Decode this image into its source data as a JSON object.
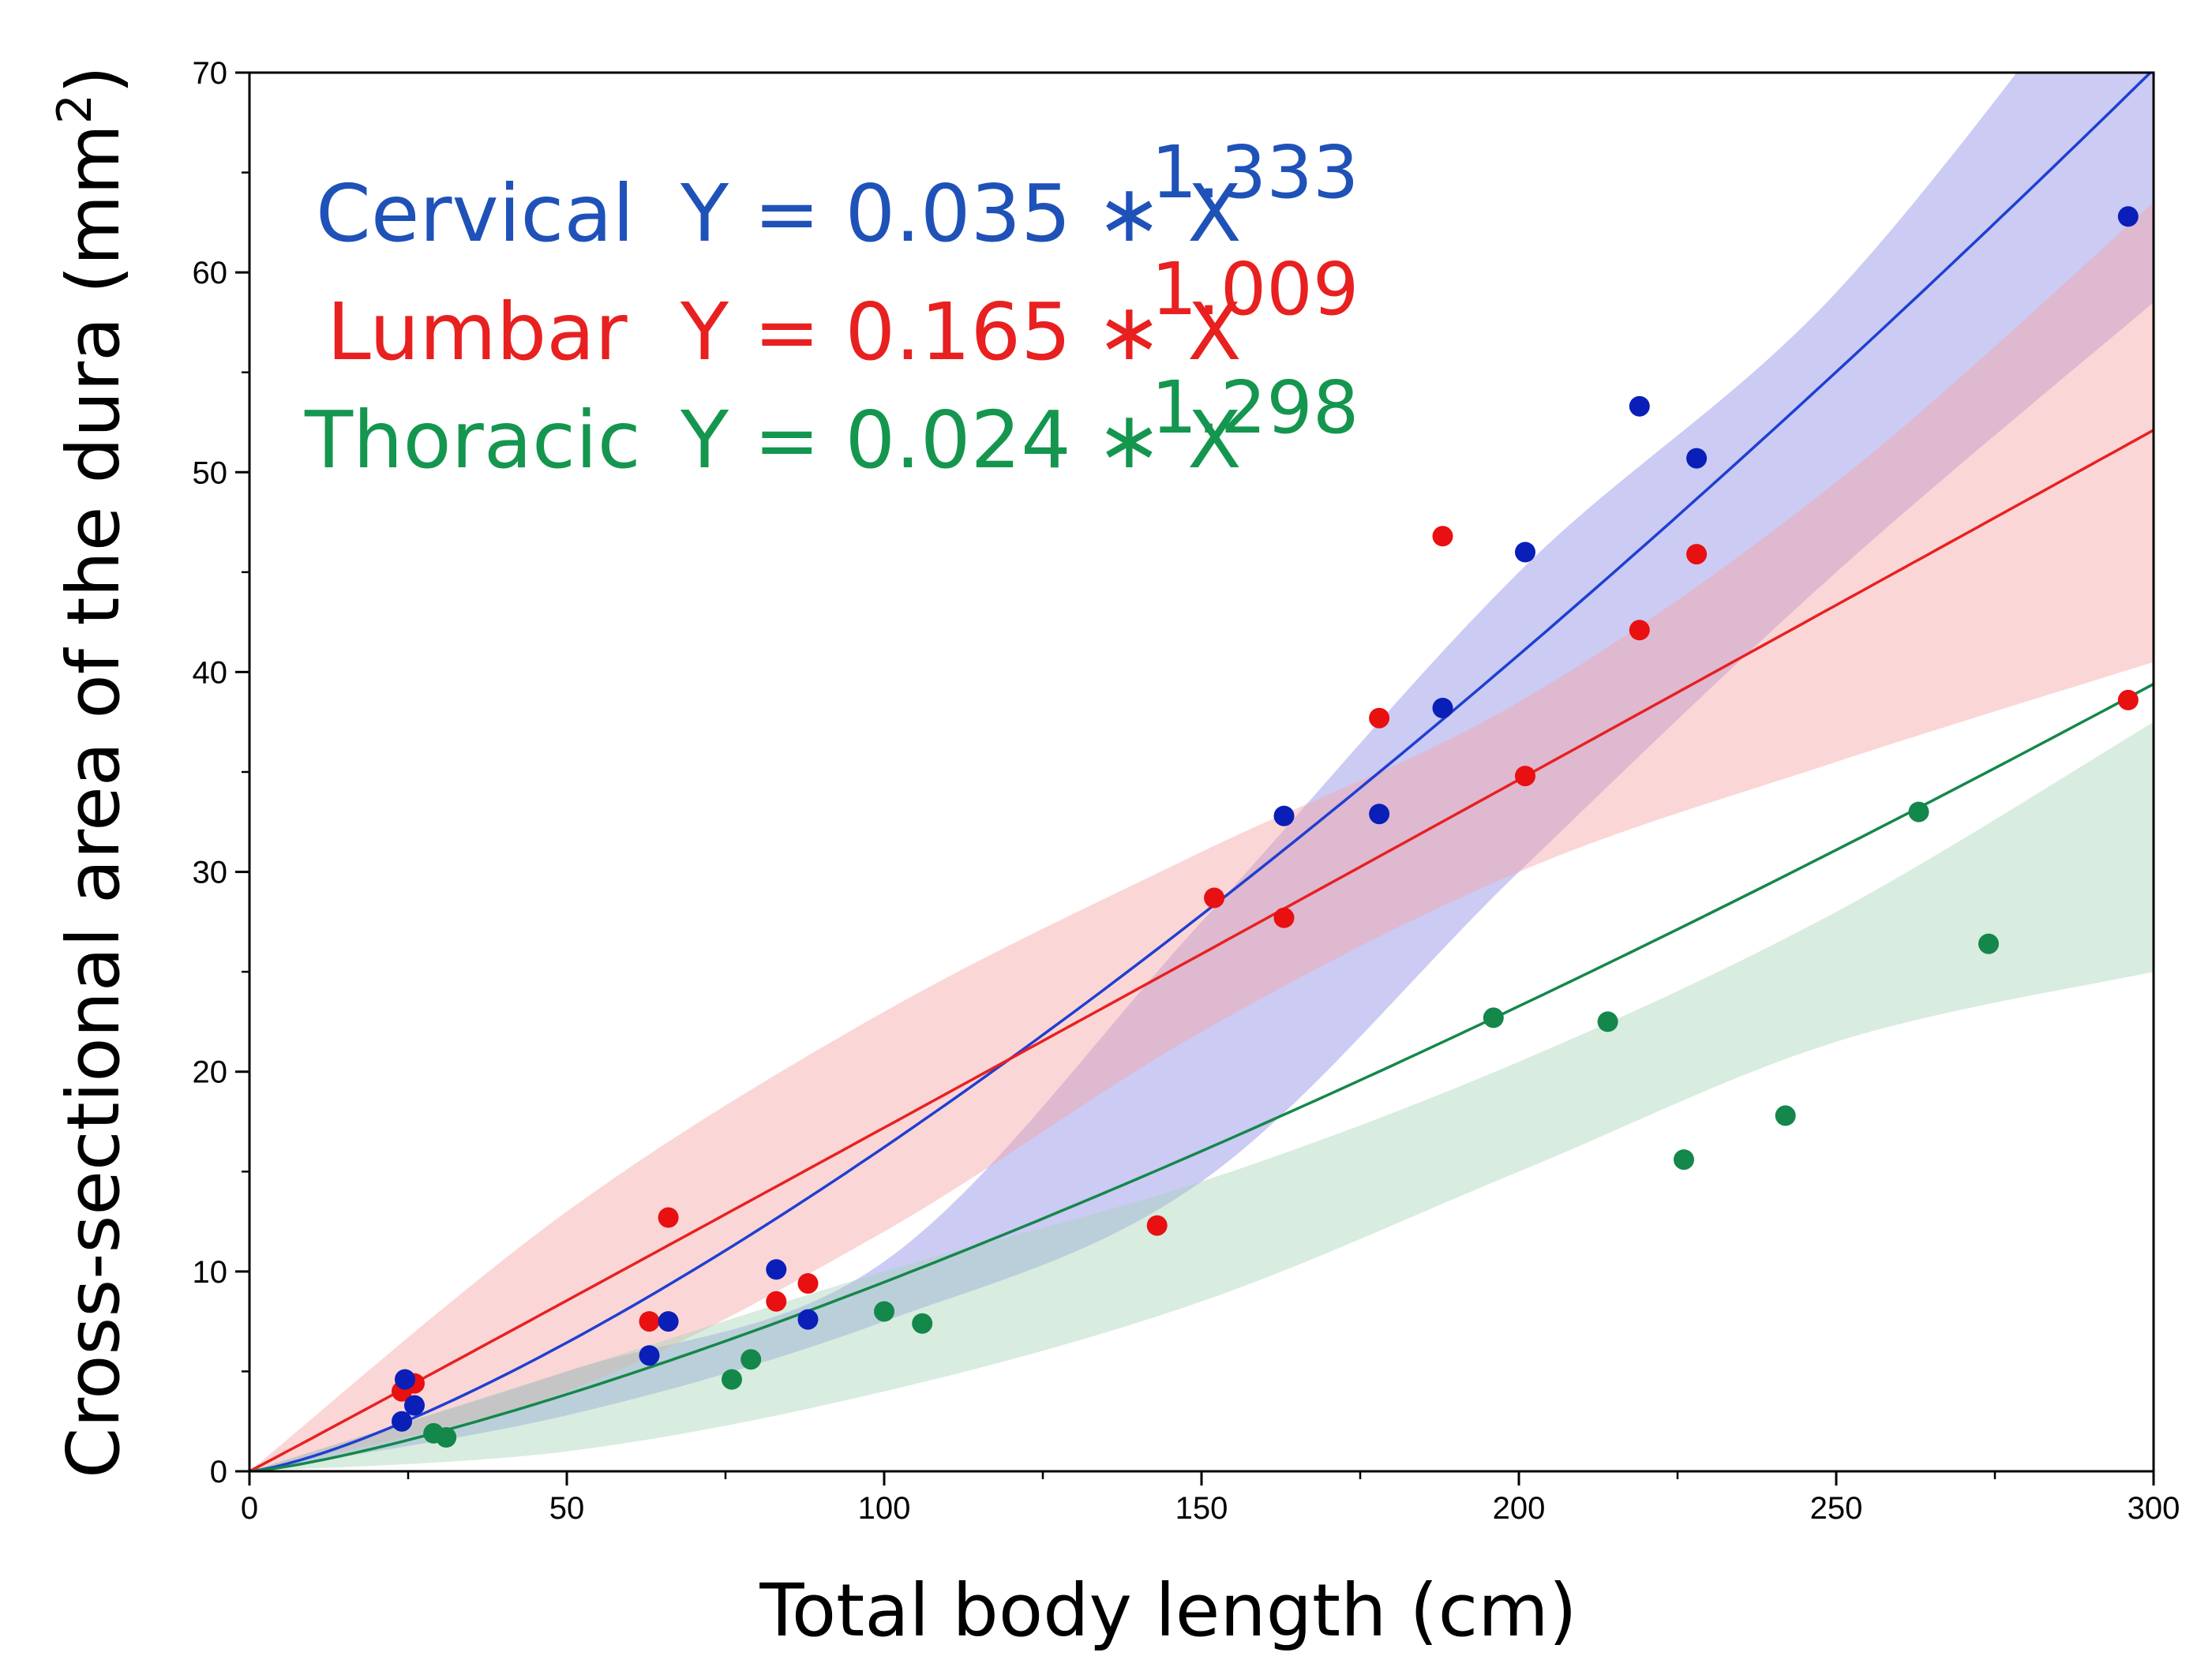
{
  "chart_data": {
    "type": "scatter",
    "title": "",
    "xlabel": "Total body length (cm)",
    "ylabel_main": "Cross-sectional area of the dura (mm",
    "ylabel_sup": "2",
    "ylabel_close": ")",
    "xlim": [
      0,
      300
    ],
    "ylim": [
      0,
      70
    ],
    "xticks": [
      0,
      50,
      100,
      150,
      200,
      250,
      300
    ],
    "yticks": [
      0,
      10,
      20,
      30,
      40,
      50,
      60,
      70
    ],
    "grid": false,
    "legend_position": "top-left",
    "series": [
      {
        "name": "Cervical",
        "color": "#1f3fd1",
        "point_color": "#0a1fb8",
        "band_color": "#8c8ce6",
        "equation": "Y = 0.035 ∗ X",
        "exponent": "1.333",
        "coef": 0.035,
        "power": 1.333,
        "band": {
          "x": [
            0,
            50,
            100,
            150,
            200,
            250,
            300
          ],
          "lower": [
            0,
            2.8,
            7.5,
            14.5,
            30.0,
            45.0,
            58.5
          ],
          "upper": [
            0,
            5.0,
            10.5,
            27.5,
            45.0,
            59.0,
            79.0
          ]
        },
        "points": [
          [
            24,
            2.5
          ],
          [
            24.5,
            4.6
          ],
          [
            26,
            3.3
          ],
          [
            63,
            5.8
          ],
          [
            66,
            7.5
          ],
          [
            83,
            10.1
          ],
          [
            88,
            7.6
          ],
          [
            163,
            32.8
          ],
          [
            178,
            32.9
          ],
          [
            188,
            38.2
          ],
          [
            201,
            46
          ],
          [
            219,
            53.3
          ],
          [
            228,
            50.7
          ],
          [
            296,
            62.8
          ]
        ]
      },
      {
        "name": "Lumbar",
        "color": "#e82020",
        "point_color": "#e81010",
        "band_color": "#f7a5a5",
        "equation": "Y = 0.165 ∗ X",
        "exponent": "1.009",
        "coef": 0.165,
        "power": 1.009,
        "band": {
          "x": [
            0,
            50,
            100,
            150,
            200,
            250,
            300
          ],
          "lower": [
            0,
            4.0,
            12.0,
            22.0,
            30.0,
            35.5,
            40.5
          ],
          "upper": [
            0,
            13.0,
            23.0,
            31.0,
            38.5,
            49.5,
            63.5
          ]
        },
        "points": [
          [
            24,
            4
          ],
          [
            26,
            4.4
          ],
          [
            63,
            7.5
          ],
          [
            66,
            12.7
          ],
          [
            83,
            8.5
          ],
          [
            88,
            9.4
          ],
          [
            143,
            12.3
          ],
          [
            152,
            28.7
          ],
          [
            163,
            27.7
          ],
          [
            178,
            37.7
          ],
          [
            188,
            46.8
          ],
          [
            201,
            34.8
          ],
          [
            219,
            42.1
          ],
          [
            228,
            45.9
          ],
          [
            296,
            38.6
          ]
        ]
      },
      {
        "name": "Thoracic",
        "color": "#14874a",
        "point_color": "#14874a",
        "band_color": "#a9d5bb",
        "equation": "Y = 0.024 ∗ X",
        "exponent": "1.298",
        "coef": 0.024,
        "power": 1.298,
        "band": {
          "x": [
            0,
            50,
            100,
            150,
            200,
            250,
            300
          ],
          "lower": [
            0,
            1.0,
            4.0,
            8.5,
            15.0,
            21.5,
            25.0
          ],
          "upper": [
            0,
            5.0,
            10.0,
            14.5,
            20.5,
            28.0,
            37.5
          ]
        },
        "points": [
          [
            29,
            1.9
          ],
          [
            31,
            1.7
          ],
          [
            76,
            4.6
          ],
          [
            79,
            5.6
          ],
          [
            100,
            8
          ],
          [
            106,
            7.4
          ],
          [
            196,
            22.7
          ],
          [
            214,
            22.5
          ],
          [
            226,
            15.6
          ],
          [
            242,
            17.8
          ],
          [
            263,
            33
          ],
          [
            274,
            26.4
          ]
        ]
      }
    ]
  }
}
